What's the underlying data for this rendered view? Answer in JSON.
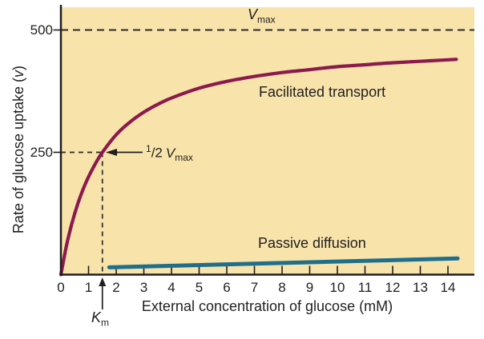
{
  "colors": {
    "page_bg": "#ffffff",
    "plot_bg": "#f8e3ab",
    "facilitated": "#8b1a4d",
    "passive": "#1e6e8c",
    "axis": "#1f1f1f",
    "dash": "#2a2a2a",
    "text": "#1f1f1f"
  },
  "labels": {
    "ylabel_prefix": "Rate of glucose uptake (",
    "ylabel_var": "v",
    "ylabel_suffix": ")",
    "xlabel": "External concentration of glucose (mM)",
    "facilitated": "Facilitated transport",
    "passive": "Passive diffusion",
    "vmax": {
      "main": "V",
      "sub": "max"
    },
    "half_vmax": {
      "num": "1",
      "slash": "/",
      "den": "2",
      "main": "V",
      "sub": "max"
    },
    "km": {
      "main": "K",
      "sub": "m"
    }
  },
  "chart_data": {
    "type": "line",
    "title": "",
    "xlabel": "External concentration of glucose (mM)",
    "ylabel": "Rate of glucose uptake (v)",
    "xlim": [
      0,
      15
    ],
    "ylim": [
      0,
      545
    ],
    "grid": false,
    "legend_position": "none",
    "x_ticks": [
      0,
      1,
      2,
      3,
      4,
      5,
      6,
      7,
      8,
      9,
      10,
      11,
      12,
      13,
      14
    ],
    "y_ticks": [
      250,
      500
    ],
    "series": [
      {
        "name": "Facilitated transport",
        "color": "#8b1a4d",
        "model": "Michaelis-Menten",
        "vmax": 500,
        "km_mM": 1.5,
        "points": [
          [
            0,
            0
          ],
          [
            0.2,
            59
          ],
          [
            0.4,
            105
          ],
          [
            0.6,
            143
          ],
          [
            0.8,
            174
          ],
          [
            1.0,
            200
          ],
          [
            1.25,
            227
          ],
          [
            1.5,
            250
          ],
          [
            2.0,
            286
          ],
          [
            2.5,
            312
          ],
          [
            3.0,
            332
          ],
          [
            3.5,
            348
          ],
          [
            4.0,
            361
          ],
          [
            5.0,
            381
          ],
          [
            6.0,
            395
          ],
          [
            7.0,
            405
          ],
          [
            8.0,
            413
          ],
          [
            9.0,
            419
          ],
          [
            10,
            425
          ],
          [
            11,
            429
          ],
          [
            12,
            433
          ],
          [
            13,
            436
          ],
          [
            14,
            439
          ],
          [
            14.3,
            440
          ]
        ]
      },
      {
        "name": "Passive diffusion",
        "color": "#1e6e8c",
        "model": "linear",
        "points": [
          [
            1.75,
            15
          ],
          [
            14.35,
            33
          ]
        ]
      }
    ],
    "annotations": {
      "vmax_dashed_line_v": 500,
      "half_vmax_v": 250,
      "km_mM": 1.5
    }
  }
}
